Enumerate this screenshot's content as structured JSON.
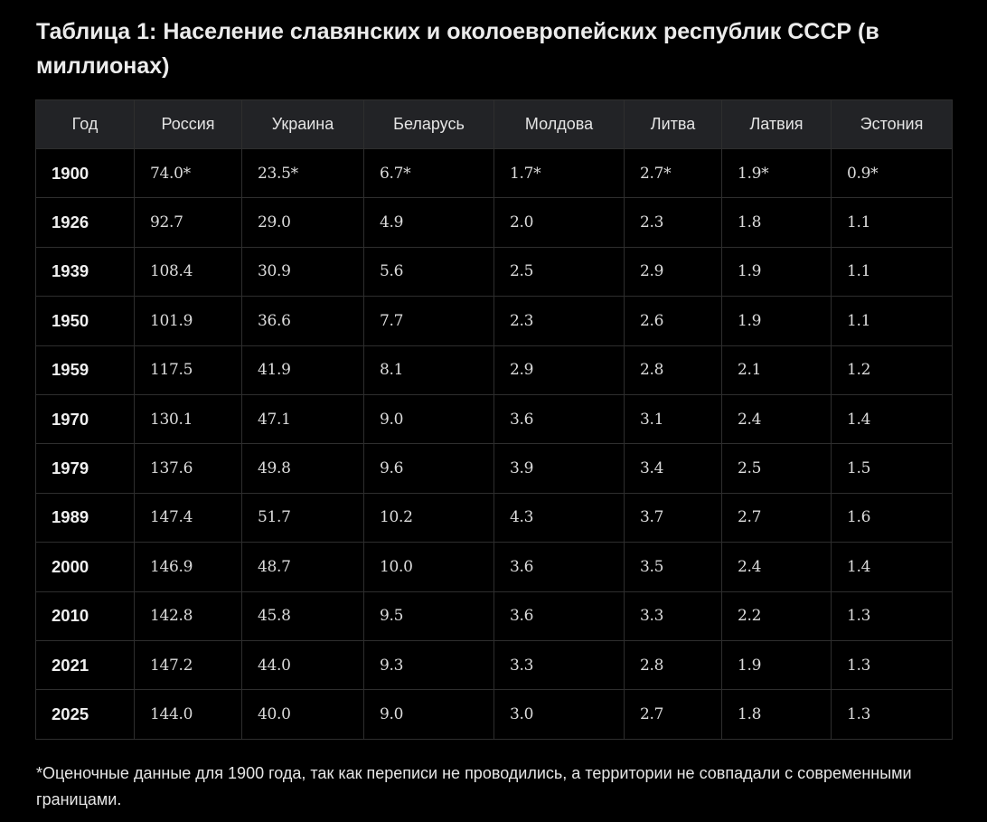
{
  "title": "Таблица 1: Население славянских и околоевропейских республик СССР (в миллионах)",
  "columns": [
    "Год",
    "Россия",
    "Украина",
    "Беларусь",
    "Молдова",
    "Литва",
    "Латвия",
    "Эстония"
  ],
  "rows": [
    [
      "1900",
      "74.0*",
      "23.5*",
      "6.7*",
      "1.7*",
      "2.7*",
      "1.9*",
      "0.9*"
    ],
    [
      "1926",
      "92.7",
      "29.0",
      "4.9",
      "2.0",
      "2.3",
      "1.8",
      "1.1"
    ],
    [
      "1939",
      "108.4",
      "30.9",
      "5.6",
      "2.5",
      "2.9",
      "1.9",
      "1.1"
    ],
    [
      "1950",
      "101.9",
      "36.6",
      "7.7",
      "2.3",
      "2.6",
      "1.9",
      "1.1"
    ],
    [
      "1959",
      "117.5",
      "41.9",
      "8.1",
      "2.9",
      "2.8",
      "2.1",
      "1.2"
    ],
    [
      "1970",
      "130.1",
      "47.1",
      "9.0",
      "3.6",
      "3.1",
      "2.4",
      "1.4"
    ],
    [
      "1979",
      "137.6",
      "49.8",
      "9.6",
      "3.9",
      "3.4",
      "2.5",
      "1.5"
    ],
    [
      "1989",
      "147.4",
      "51.7",
      "10.2",
      "4.3",
      "3.7",
      "2.7",
      "1.6"
    ],
    [
      "2000",
      "146.9",
      "48.7",
      "10.0",
      "3.6",
      "3.5",
      "2.4",
      "1.4"
    ],
    [
      "2010",
      "142.8",
      "45.8",
      "9.5",
      "3.6",
      "3.3",
      "2.2",
      "1.3"
    ],
    [
      "2021",
      "147.2",
      "44.0",
      "9.3",
      "3.3",
      "2.8",
      "1.9",
      "1.3"
    ],
    [
      "2025",
      "144.0",
      "40.0",
      "9.0",
      "3.0",
      "2.7",
      "1.8",
      "1.3"
    ]
  ],
  "footnote": "*Оценочные данные для 1900 года, так как переписи не проводились, а территории не совпадали с современными границами."
}
